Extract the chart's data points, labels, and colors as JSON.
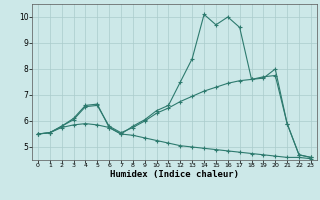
{
  "title": "",
  "xlabel": "Humidex (Indice chaleur)",
  "xlim": [
    -0.5,
    23.5
  ],
  "ylim": [
    4.5,
    10.5
  ],
  "yticks": [
    5,
    6,
    7,
    8,
    9,
    10
  ],
  "xticks": [
    0,
    1,
    2,
    3,
    4,
    5,
    6,
    7,
    8,
    9,
    10,
    11,
    12,
    13,
    14,
    15,
    16,
    17,
    18,
    19,
    20,
    21,
    22,
    23
  ],
  "bg_color": "#cce8e8",
  "grid_color": "#aacccc",
  "line_color": "#2d7a6e",
  "series": [
    [
      5.5,
      5.55,
      5.8,
      6.1,
      6.6,
      6.65,
      5.75,
      5.5,
      5.8,
      6.05,
      6.4,
      6.6,
      7.5,
      8.4,
      10.1,
      9.7,
      10.0,
      9.6,
      7.6,
      7.65,
      8.0,
      5.9,
      4.7,
      4.6
    ],
    [
      5.5,
      5.55,
      5.8,
      6.05,
      6.55,
      6.6,
      5.8,
      5.55,
      5.75,
      6.0,
      6.3,
      6.5,
      6.75,
      6.95,
      7.15,
      7.3,
      7.45,
      7.55,
      7.6,
      7.7,
      7.75,
      5.9,
      4.7,
      4.6
    ],
    [
      5.5,
      5.55,
      5.75,
      5.85,
      5.9,
      5.85,
      5.75,
      5.5,
      5.45,
      5.35,
      5.25,
      5.15,
      5.05,
      5.0,
      4.95,
      4.9,
      4.85,
      4.8,
      4.75,
      4.7,
      4.65,
      4.6,
      4.6,
      4.55
    ]
  ]
}
